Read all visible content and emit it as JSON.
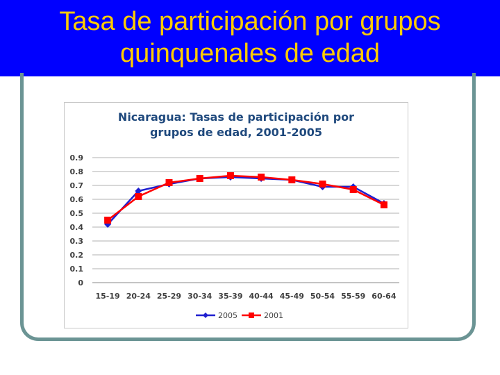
{
  "slide": {
    "title_line1": "Tasa de participación por grupos",
    "title_line2": "quinquenales de edad"
  },
  "colors": {
    "title_bg": "#0000ff",
    "title_text": "#ffcc00",
    "frame": "#6b9494",
    "chart_title": "#1f497d",
    "series_2005": "#1f1fd0",
    "series_2001": "#ff0000"
  },
  "chart_data": {
    "type": "line",
    "title_line1": "Nicaragua: Tasas de participación por",
    "title_line2": "grupos de edad, 2001-2005",
    "categories": [
      "15-19",
      "20-24",
      "25-29",
      "30-34",
      "35-39",
      "40-44",
      "45-49",
      "50-54",
      "55-59",
      "60-64"
    ],
    "yticks": [
      "0",
      "0.1",
      "0.2",
      "0.3",
      "0.4",
      "0.5",
      "0.6",
      "0.7",
      "0.8",
      "0.9"
    ],
    "ylim": [
      0,
      0.9
    ],
    "grid": true,
    "legend_position": "bottom",
    "series": [
      {
        "name": "2005",
        "marker": "diamond",
        "color": "#1f1fd0",
        "values": [
          0.42,
          0.66,
          0.71,
          0.75,
          0.76,
          0.75,
          0.74,
          0.69,
          0.69,
          0.57
        ]
      },
      {
        "name": "2001",
        "marker": "square",
        "color": "#ff0000",
        "values": [
          0.45,
          0.62,
          0.72,
          0.75,
          0.77,
          0.76,
          0.74,
          0.71,
          0.67,
          0.56
        ]
      }
    ]
  }
}
